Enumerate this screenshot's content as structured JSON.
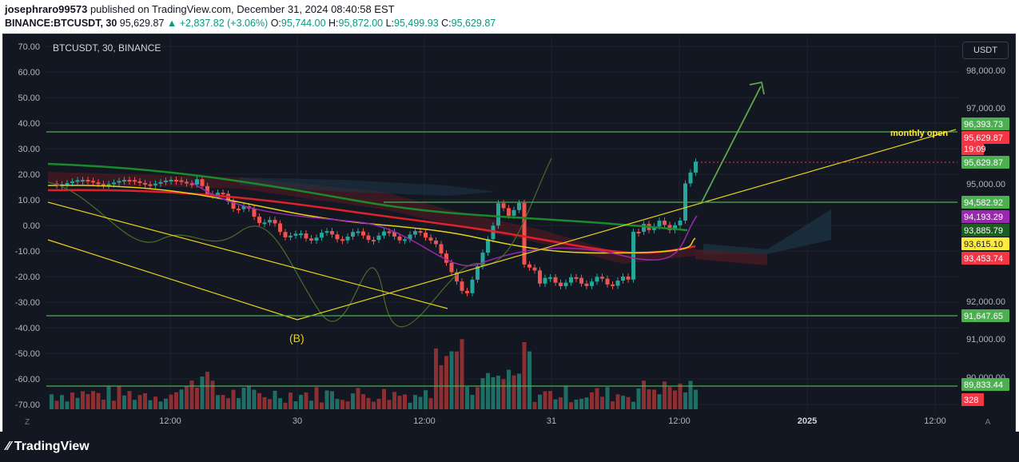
{
  "header": {
    "publisher": "josephraro99573",
    "published_text": " published on TradingView.com, December 31, 2024 08:40:58 EST",
    "symbol": "BINANCE:BTCUSDT, 30",
    "price": "95,629.87",
    "change": "▲ +2,837.82 (+3.06%)",
    "o_label": "O:",
    "o_value": "95,744.00",
    "h_label": "H:",
    "h_value": "95,872.00",
    "l_label": "L:",
    "l_value": "95,499.93",
    "c_label": "C:",
    "c_value": "95,629.87"
  },
  "chart": {
    "legend": "BTCUSDT, 30, BINANCE",
    "currency": "USDT",
    "left_ticks": [
      "70.00",
      "60.00",
      "50.00",
      "40.00",
      "30.00",
      "20.00",
      "10.00",
      "0.00",
      "-10.00",
      "-20.00",
      "-30.00",
      "-40.00",
      "-50.00",
      "-60.00",
      "-70.00"
    ],
    "right_ticks": [
      "98,000.00",
      "97,000.00",
      "95,000.00",
      "92,000.00",
      "91,000.00",
      "90,000.00"
    ],
    "time_ticks": [
      "12:00",
      "30",
      "12:00",
      "31",
      "12:00",
      "2025",
      "12:00"
    ],
    "annotations": {
      "wave_label": "(B)",
      "level_label": "monthly open"
    },
    "price_labels": [
      {
        "text": "96,393.73",
        "color": "#4caf50"
      },
      {
        "text": "95,629.87",
        "color": "#f23645"
      },
      {
        "text": "19:09",
        "color": "#f23645"
      },
      {
        "text": "95,629.87",
        "color": "#4caf50"
      },
      {
        "text": "94,582.92",
        "color": "#4caf50"
      },
      {
        "text": "94,193.29",
        "color": "#9c27b0"
      },
      {
        "text": "93,885.79",
        "color": "#1b5e20"
      },
      {
        "text": "93,615.10",
        "color": "#ffeb3b"
      },
      {
        "text": "93,453.74",
        "color": "#f23645"
      },
      {
        "text": "91,647.65",
        "color": "#4caf50"
      },
      {
        "text": "89,833.44",
        "color": "#4caf50"
      },
      {
        "text": "328",
        "color": "#f23645"
      }
    ],
    "corner_left": "Z",
    "corner_right": "A"
  },
  "footer": {
    "brand": "TradingView"
  },
  "colors": {
    "up": "#26a69a",
    "down": "#ef5350",
    "bg": "#131722",
    "grid": "#1e222d"
  }
}
